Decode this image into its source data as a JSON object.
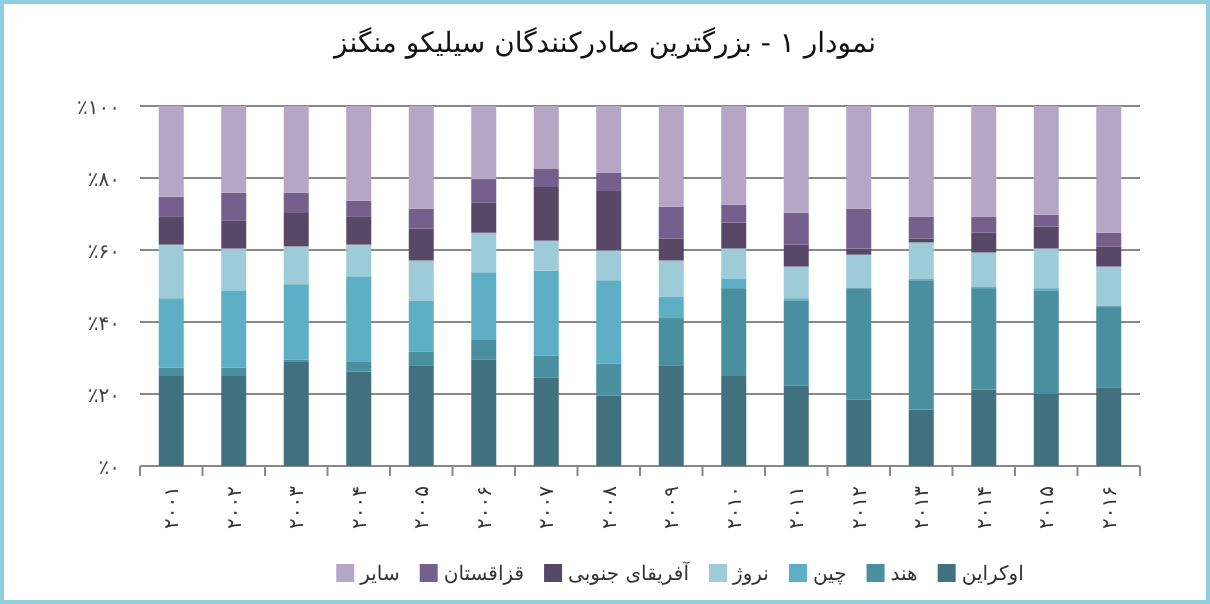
{
  "chart_data": {
    "type": "bar",
    "title": "نمودار ۱ - بزرگترین صادرکنندگان سیلیکو منگنز",
    "stacked": true,
    "categories": [
      "۲۰۰۱",
      "۲۰۰۲",
      "۲۰۰۳",
      "۲۰۰۴",
      "۲۰۰۵",
      "۲۰۰۶",
      "۲۰۰۷",
      "۲۰۰۸",
      "۲۰۰۹",
      "۲۰۱۰",
      "۲۰۱۱",
      "۲۰۱۲",
      "۲۰۱۳",
      "۲۰۱۴",
      "۲۰۱۵",
      "۲۰۱۶"
    ],
    "ylim": [
      0,
      100
    ],
    "yticks": [
      {
        "value": 0,
        "label": "٪۰"
      },
      {
        "value": 20,
        "label": "٪۲۰"
      },
      {
        "value": 40,
        "label": "٪۴۰"
      },
      {
        "value": 60,
        "label": "٪۶۰"
      },
      {
        "value": 80,
        "label": "٪۸۰"
      },
      {
        "value": 100,
        "label": "٪۱۰۰"
      }
    ],
    "grid": "y",
    "legend": "bottom",
    "series": [
      {
        "name": "اوکراین",
        "color": "#41707e",
        "values": [
          25,
          25,
          29.1,
          26.2,
          27.8,
          29.5,
          24.5,
          19.5,
          27.8,
          25,
          22.3,
          18.4,
          15.7,
          21.2,
          20.1,
          21.7
        ]
      },
      {
        "name": "هند",
        "color": "#4a8fa0",
        "values": [
          2.3,
          2.3,
          0.4,
          2.7,
          3.9,
          5.5,
          6.1,
          8.9,
          13.3,
          24.4,
          23.7,
          31,
          35.9,
          28.2,
          28.7,
          22.7
        ]
      },
      {
        "name": "چین",
        "color": "#5eafc5",
        "values": [
          19.3,
          21.5,
          21,
          23.8,
          14.3,
          18.8,
          23.7,
          23.2,
          6,
          2.7,
          0.6,
          0,
          0.5,
          0.5,
          0.6,
          0
        ]
      },
      {
        "name": "نروژ",
        "color": "#9ecbd8",
        "values": [
          14.9,
          11.6,
          10.5,
          8.8,
          11.1,
          11,
          8.3,
          8.3,
          10,
          8.3,
          8.8,
          9.3,
          10,
          9.4,
          11,
          11
        ]
      },
      {
        "name": "آفریقای جنوبی",
        "color": "#574868",
        "values": [
          7.7,
          7.7,
          9.5,
          7.7,
          8.8,
          8.3,
          14.9,
          16.5,
          6.1,
          7.2,
          6.1,
          1.7,
          1.1,
          5.5,
          6.1,
          5.6
        ]
      },
      {
        "name": "قزاقستان",
        "color": "#755f8c",
        "values": [
          5.6,
          7.8,
          5.4,
          4.5,
          5.6,
          6.6,
          5,
          5,
          8.8,
          5,
          8.8,
          11.1,
          6,
          4.4,
          3.3,
          3.8
        ]
      },
      {
        "name": "سایر",
        "color": "#b5a6c6",
        "values": [
          25.2,
          24.1,
          24.1,
          26.3,
          28.5,
          20.3,
          17.5,
          18.6,
          28,
          27.4,
          29.7,
          28.5,
          30.8,
          30.8,
          30.2,
          35.2
        ]
      }
    ]
  }
}
